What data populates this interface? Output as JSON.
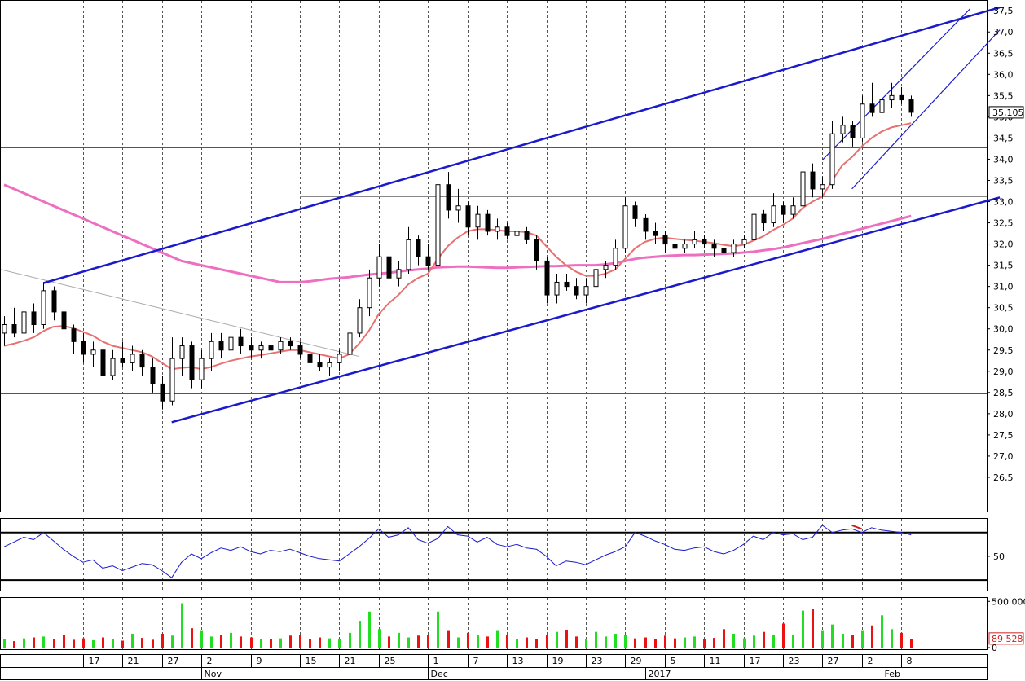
{
  "chart_data": [
    {
      "type": "candlestick",
      "title": "",
      "y_ticks": [
        "37,5",
        "37,0",
        "36,5",
        "36,0",
        "35,5",
        "35,0",
        "34,5",
        "34,0",
        "33,5",
        "33,0",
        "32,5",
        "32,0",
        "31,5",
        "31,0",
        "30,5",
        "30,0",
        "29,5",
        "29,0",
        "28,5",
        "28,0",
        "27,5",
        "27,0",
        "26,5"
      ],
      "ylim": [
        26.0,
        37.6
      ],
      "last_price_label": "35,105",
      "last_price": 35.105,
      "horizontal_levels": [
        {
          "value": 34.28,
          "color": "#cc2222"
        },
        {
          "value": 28.47,
          "color": "#cc2222"
        },
        {
          "value": 33.98,
          "color": "#888888"
        },
        {
          "value": 33.12,
          "color": "#888888",
          "from_x": 30.0
        }
      ],
      "x_labels": [
        "17",
        "21",
        "27",
        "2",
        "9",
        "15",
        "21",
        "25",
        "1",
        "7",
        "13",
        "19",
        "23",
        "29",
        "5",
        "11",
        "17",
        "23",
        "27",
        "2",
        "8"
      ],
      "x_label_index": [
        8,
        12,
        16,
        20,
        25,
        30,
        34,
        38,
        43,
        47,
        51,
        55,
        59,
        63,
        67,
        71,
        75,
        79,
        83,
        87,
        91
      ],
      "month_labels": [
        "Nov",
        "Dec",
        "2017",
        "Feb"
      ],
      "month_index": [
        20,
        43,
        65,
        89
      ],
      "moving_average_fast": {
        "color": "#e87070"
      },
      "moving_average_slow": {
        "color": "#ee6ec0"
      },
      "trend_channel_wide": {
        "color": "#1a1acc",
        "upper": [
          [
            4,
            31.08
          ],
          [
            101,
            37.58
          ]
        ],
        "lower": [
          [
            17,
            27.8
          ],
          [
            101,
            33.1
          ]
        ]
      },
      "trend_channel_narrow": {
        "color": "#1a1acc",
        "upper": [
          [
            83,
            33.98
          ],
          [
            98,
            37.55
          ]
        ],
        "lower": [
          [
            86,
            33.3
          ],
          [
            101,
            37.05
          ]
        ]
      },
      "resistance_line": {
        "color": "#aaaaaa",
        "from": [
          0,
          31.4
        ],
        "to": [
          36,
          29.35
        ]
      },
      "candles": [
        {
          "o": 29.9,
          "h": 30.3,
          "l": 29.6,
          "c": 30.1
        },
        {
          "o": 30.1,
          "h": 30.5,
          "l": 29.8,
          "c": 29.9
        },
        {
          "o": 29.9,
          "h": 30.7,
          "l": 29.7,
          "c": 30.4
        },
        {
          "o": 30.4,
          "h": 30.6,
          "l": 29.9,
          "c": 30.1
        },
        {
          "o": 30.1,
          "h": 31.1,
          "l": 30.0,
          "c": 30.9
        },
        {
          "o": 30.9,
          "h": 31.0,
          "l": 30.2,
          "c": 30.4
        },
        {
          "o": 30.4,
          "h": 30.6,
          "l": 29.8,
          "c": 30.0
        },
        {
          "o": 30.0,
          "h": 30.1,
          "l": 29.4,
          "c": 29.7
        },
        {
          "o": 29.7,
          "h": 29.9,
          "l": 29.2,
          "c": 29.4
        },
        {
          "o": 29.4,
          "h": 29.7,
          "l": 29.1,
          "c": 29.5
        },
        {
          "o": 29.5,
          "h": 29.6,
          "l": 28.6,
          "c": 28.9
        },
        {
          "o": 28.9,
          "h": 29.5,
          "l": 28.8,
          "c": 29.3
        },
        {
          "o": 29.3,
          "h": 29.7,
          "l": 29.1,
          "c": 29.2
        },
        {
          "o": 29.2,
          "h": 29.6,
          "l": 29.0,
          "c": 29.4
        },
        {
          "o": 29.4,
          "h": 29.5,
          "l": 28.9,
          "c": 29.1
        },
        {
          "o": 29.1,
          "h": 29.3,
          "l": 28.5,
          "c": 28.7
        },
        {
          "o": 28.7,
          "h": 28.9,
          "l": 28.1,
          "c": 28.3
        },
        {
          "o": 28.3,
          "h": 29.8,
          "l": 28.2,
          "c": 29.3
        },
        {
          "o": 29.3,
          "h": 29.8,
          "l": 28.9,
          "c": 29.6
        },
        {
          "o": 29.6,
          "h": 29.7,
          "l": 28.6,
          "c": 28.8
        },
        {
          "o": 28.8,
          "h": 29.5,
          "l": 28.6,
          "c": 29.3
        },
        {
          "o": 29.3,
          "h": 29.9,
          "l": 29.0,
          "c": 29.7
        },
        {
          "o": 29.7,
          "h": 29.9,
          "l": 29.3,
          "c": 29.5
        },
        {
          "o": 29.5,
          "h": 30.0,
          "l": 29.3,
          "c": 29.8
        },
        {
          "o": 29.8,
          "h": 30.0,
          "l": 29.4,
          "c": 29.6
        },
        {
          "o": 29.6,
          "h": 29.8,
          "l": 29.3,
          "c": 29.5
        },
        {
          "o": 29.5,
          "h": 29.7,
          "l": 29.3,
          "c": 29.6
        },
        {
          "o": 29.6,
          "h": 29.8,
          "l": 29.4,
          "c": 29.5
        },
        {
          "o": 29.5,
          "h": 29.8,
          "l": 29.4,
          "c": 29.7
        },
        {
          "o": 29.7,
          "h": 29.8,
          "l": 29.5,
          "c": 29.6
        },
        {
          "o": 29.6,
          "h": 29.7,
          "l": 29.3,
          "c": 29.4
        },
        {
          "o": 29.4,
          "h": 29.5,
          "l": 29.0,
          "c": 29.2
        },
        {
          "o": 29.2,
          "h": 29.4,
          "l": 29.0,
          "c": 29.1
        },
        {
          "o": 29.1,
          "h": 29.3,
          "l": 28.9,
          "c": 29.2
        },
        {
          "o": 29.2,
          "h": 29.5,
          "l": 29.0,
          "c": 29.4
        },
        {
          "o": 29.4,
          "h": 30.0,
          "l": 29.3,
          "c": 29.9
        },
        {
          "o": 29.9,
          "h": 30.7,
          "l": 29.8,
          "c": 30.5
        },
        {
          "o": 30.5,
          "h": 31.4,
          "l": 30.3,
          "c": 31.2
        },
        {
          "o": 31.2,
          "h": 32.0,
          "l": 31.0,
          "c": 31.7
        },
        {
          "o": 31.7,
          "h": 31.8,
          "l": 31.0,
          "c": 31.2
        },
        {
          "o": 31.2,
          "h": 31.6,
          "l": 31.0,
          "c": 31.4
        },
        {
          "o": 31.4,
          "h": 32.4,
          "l": 31.3,
          "c": 32.1
        },
        {
          "o": 32.1,
          "h": 32.2,
          "l": 31.5,
          "c": 31.7
        },
        {
          "o": 31.7,
          "h": 32.0,
          "l": 31.4,
          "c": 31.5
        },
        {
          "o": 31.5,
          "h": 33.9,
          "l": 31.4,
          "c": 33.4
        },
        {
          "o": 33.4,
          "h": 33.7,
          "l": 32.6,
          "c": 32.8
        },
        {
          "o": 32.8,
          "h": 33.3,
          "l": 32.5,
          "c": 32.9
        },
        {
          "o": 32.9,
          "h": 33.0,
          "l": 32.2,
          "c": 32.4
        },
        {
          "o": 32.4,
          "h": 32.9,
          "l": 32.1,
          "c": 32.7
        },
        {
          "o": 32.7,
          "h": 32.8,
          "l": 32.2,
          "c": 32.3
        },
        {
          "o": 32.3,
          "h": 32.6,
          "l": 32.1,
          "c": 32.4
        },
        {
          "o": 32.4,
          "h": 32.5,
          "l": 32.1,
          "c": 32.2
        },
        {
          "o": 32.2,
          "h": 32.4,
          "l": 32.0,
          "c": 32.3
        },
        {
          "o": 32.3,
          "h": 32.4,
          "l": 32.0,
          "c": 32.1
        },
        {
          "o": 32.1,
          "h": 32.2,
          "l": 31.4,
          "c": 31.6
        },
        {
          "o": 31.6,
          "h": 31.7,
          "l": 30.6,
          "c": 30.8
        },
        {
          "o": 30.8,
          "h": 31.3,
          "l": 30.6,
          "c": 31.1
        },
        {
          "o": 31.1,
          "h": 31.3,
          "l": 30.9,
          "c": 31.0
        },
        {
          "o": 31.0,
          "h": 31.2,
          "l": 30.7,
          "c": 30.8
        },
        {
          "o": 30.8,
          "h": 31.2,
          "l": 30.6,
          "c": 31.0
        },
        {
          "o": 31.0,
          "h": 31.5,
          "l": 30.9,
          "c": 31.4
        },
        {
          "o": 31.4,
          "h": 31.6,
          "l": 31.2,
          "c": 31.5
        },
        {
          "o": 31.5,
          "h": 32.1,
          "l": 31.4,
          "c": 31.9
        },
        {
          "o": 31.9,
          "h": 33.1,
          "l": 31.8,
          "c": 32.9
        },
        {
          "o": 32.9,
          "h": 33.0,
          "l": 32.4,
          "c": 32.6
        },
        {
          "o": 32.6,
          "h": 32.7,
          "l": 32.1,
          "c": 32.3
        },
        {
          "o": 32.3,
          "h": 32.5,
          "l": 32.0,
          "c": 32.2
        },
        {
          "o": 32.2,
          "h": 32.3,
          "l": 31.8,
          "c": 32.0
        },
        {
          "o": 32.0,
          "h": 32.2,
          "l": 31.8,
          "c": 31.9
        },
        {
          "o": 31.9,
          "h": 32.1,
          "l": 31.8,
          "c": 32.0
        },
        {
          "o": 32.0,
          "h": 32.3,
          "l": 31.9,
          "c": 32.1
        },
        {
          "o": 32.1,
          "h": 32.2,
          "l": 31.9,
          "c": 32.0
        },
        {
          "o": 32.0,
          "h": 32.1,
          "l": 31.7,
          "c": 31.9
        },
        {
          "o": 31.9,
          "h": 32.0,
          "l": 31.7,
          "c": 31.8
        },
        {
          "o": 31.8,
          "h": 32.1,
          "l": 31.7,
          "c": 32.0
        },
        {
          "o": 32.0,
          "h": 32.2,
          "l": 31.9,
          "c": 32.1
        },
        {
          "o": 32.1,
          "h": 32.9,
          "l": 32.0,
          "c": 32.7
        },
        {
          "o": 32.7,
          "h": 32.8,
          "l": 32.3,
          "c": 32.5
        },
        {
          "o": 32.5,
          "h": 33.2,
          "l": 32.4,
          "c": 32.9
        },
        {
          "o": 32.9,
          "h": 33.0,
          "l": 32.5,
          "c": 32.7
        },
        {
          "o": 32.7,
          "h": 33.1,
          "l": 32.6,
          "c": 32.9
        },
        {
          "o": 32.9,
          "h": 33.9,
          "l": 32.8,
          "c": 33.7
        },
        {
          "o": 33.7,
          "h": 33.9,
          "l": 33.1,
          "c": 33.3
        },
        {
          "o": 33.3,
          "h": 33.6,
          "l": 33.1,
          "c": 33.4
        },
        {
          "o": 33.4,
          "h": 34.9,
          "l": 33.3,
          "c": 34.6
        },
        {
          "o": 34.6,
          "h": 35.0,
          "l": 34.4,
          "c": 34.8
        },
        {
          "o": 34.8,
          "h": 34.9,
          "l": 34.3,
          "c": 34.5
        },
        {
          "o": 34.5,
          "h": 35.5,
          "l": 34.4,
          "c": 35.3
        },
        {
          "o": 35.3,
          "h": 35.8,
          "l": 35.0,
          "c": 35.1
        },
        {
          "o": 35.1,
          "h": 35.5,
          "l": 34.9,
          "c": 35.4
        },
        {
          "o": 35.4,
          "h": 35.8,
          "l": 35.2,
          "c": 35.5
        },
        {
          "o": 35.5,
          "h": 35.7,
          "l": 35.3,
          "c": 35.4
        },
        {
          "o": 35.4,
          "h": 35.5,
          "l": 35.0,
          "c": 35.105
        }
      ],
      "ma_fast_values": [
        29.6,
        29.65,
        29.72,
        29.8,
        29.95,
        30.05,
        30.07,
        30.02,
        29.93,
        29.84,
        29.7,
        29.6,
        29.55,
        29.5,
        29.45,
        29.35,
        29.2,
        29.05,
        29.08,
        29.1,
        29.05,
        29.1,
        29.18,
        29.25,
        29.3,
        29.35,
        29.38,
        29.42,
        29.46,
        29.5,
        29.5,
        29.45,
        29.4,
        29.35,
        29.3,
        29.4,
        29.65,
        29.95,
        30.35,
        30.6,
        30.8,
        31.05,
        31.2,
        31.3,
        31.65,
        31.95,
        32.15,
        32.3,
        32.35,
        32.35,
        32.33,
        32.3,
        32.3,
        32.28,
        32.2,
        31.95,
        31.7,
        31.5,
        31.35,
        31.25,
        31.25,
        31.3,
        31.4,
        31.65,
        31.9,
        32.05,
        32.12,
        32.15,
        32.12,
        32.1,
        32.08,
        32.05,
        32.02,
        31.98,
        31.95,
        31.98,
        32.08,
        32.18,
        32.33,
        32.45,
        32.6,
        32.85,
        33.0,
        33.12,
        33.5,
        33.85,
        34.05,
        34.3,
        34.5,
        34.65,
        34.75,
        34.8,
        34.85
      ],
      "ma_slow_values": [
        33.4,
        33.3,
        33.2,
        33.1,
        33.0,
        32.9,
        32.8,
        32.7,
        32.6,
        32.5,
        32.4,
        32.3,
        32.2,
        32.1,
        32.0,
        31.9,
        31.8,
        31.7,
        31.6,
        31.55,
        31.5,
        31.45,
        31.4,
        31.35,
        31.3,
        31.25,
        31.2,
        31.15,
        31.1,
        31.1,
        31.1,
        31.12,
        31.15,
        31.18,
        31.2,
        31.22,
        31.25,
        31.28,
        31.3,
        31.32,
        31.35,
        31.38,
        31.4,
        31.42,
        31.45,
        31.46,
        31.47,
        31.47,
        31.46,
        31.45,
        31.44,
        31.44,
        31.45,
        31.46,
        31.47,
        31.48,
        31.48,
        31.49,
        31.5,
        31.5,
        31.5,
        31.52,
        31.55,
        31.6,
        31.65,
        31.68,
        31.7,
        31.72,
        31.73,
        31.74,
        31.74,
        31.75,
        31.76,
        31.77,
        31.78,
        31.8,
        31.82,
        31.85,
        31.88,
        31.92,
        31.97,
        32.02,
        32.07,
        32.12,
        32.18,
        32.24,
        32.3,
        32.36,
        32.42,
        32.48,
        32.54,
        32.6,
        32.66
      ]
    },
    {
      "type": "line",
      "title": "",
      "y_ticks": [
        "50"
      ],
      "ylim": [
        26,
        78
      ],
      "upper_band": 70,
      "lower_band": 30,
      "series": [
        {
          "color": "#1a1acc",
          "values": [
            58,
            62,
            66,
            64,
            70,
            63,
            56,
            50,
            45,
            47,
            40,
            42,
            38,
            41,
            44,
            43,
            38,
            32,
            45,
            52,
            48,
            53,
            57,
            55,
            58,
            54,
            52,
            55,
            54,
            56,
            53,
            50,
            48,
            47,
            46,
            52,
            58,
            65,
            73,
            66,
            68,
            74,
            64,
            61,
            65,
            75,
            68,
            67,
            62,
            66,
            60,
            58,
            60,
            57,
            56,
            50,
            42,
            46,
            45,
            43,
            47,
            51,
            54,
            58,
            70,
            67,
            63,
            60,
            56,
            55,
            57,
            58,
            54,
            52,
            55,
            60,
            67,
            64,
            70,
            68,
            69,
            64,
            66,
            76,
            70,
            72,
            73,
            70,
            74,
            72,
            71,
            70,
            68
          ]
        },
        {
          "color": "#cc2222",
          "values": [
            76,
            73
          ],
          "from_index": 86
        }
      ]
    },
    {
      "type": "bar",
      "title": "",
      "y_ticks": [
        "500 000",
        "0"
      ],
      "ylim": [
        0,
        520000
      ],
      "last_value_label": "89 528",
      "last_value": 89528,
      "up_color": "#22dd22",
      "down_color": "#ee1111",
      "values": [
        95000,
        70000,
        100000,
        110000,
        120000,
        90000,
        140000,
        85000,
        100000,
        80000,
        110000,
        95000,
        75000,
        150000,
        105000,
        85000,
        150000,
        130000,
        480000,
        210000,
        180000,
        120000,
        140000,
        160000,
        120000,
        110000,
        95000,
        90000,
        100000,
        130000,
        140000,
        90000,
        110000,
        100000,
        90000,
        160000,
        290000,
        390000,
        200000,
        120000,
        160000,
        110000,
        130000,
        140000,
        390000,
        180000,
        110000,
        160000,
        140000,
        120000,
        180000,
        140000,
        95000,
        110000,
        90000,
        140000,
        170000,
        190000,
        120000,
        90000,
        170000,
        120000,
        150000,
        140000,
        100000,
        110000,
        90000,
        130000,
        100000,
        110000,
        120000,
        95000,
        105000,
        200000,
        150000,
        100000,
        130000,
        170000,
        140000,
        260000,
        140000,
        400000,
        420000,
        180000,
        250000,
        150000,
        140000,
        180000,
        240000,
        350000,
        200000,
        160000,
        89528
      ]
    }
  ]
}
